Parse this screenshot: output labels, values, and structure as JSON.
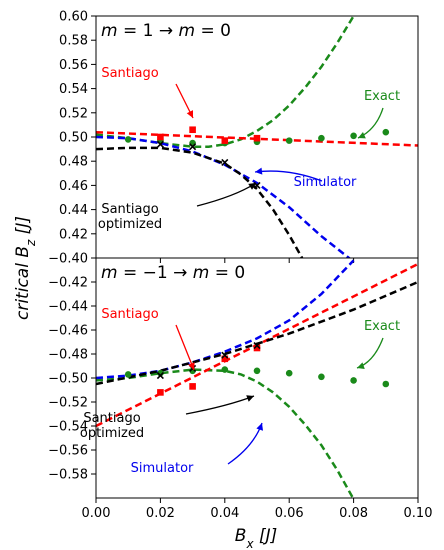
{
  "ylabel": "critical B_z [J]",
  "xlabel": "B_x [J]",
  "colors": {
    "santiago": "#ff0000",
    "exact": "#1a8a1a",
    "simulator": "#0000ee",
    "optimized": "#000000"
  },
  "chart_data": [
    {
      "type": "line",
      "title": "m = 1 → m = 0",
      "xlim": [
        0.0,
        0.1
      ],
      "ylim": [
        0.4,
        0.6
      ],
      "yticks": [
        "0.42",
        "0.44",
        "0.46",
        "0.48",
        "0.50",
        "0.52",
        "0.54",
        "0.56",
        "0.58",
        "0.60"
      ],
      "annotations": [
        "Santiago",
        "Exact",
        "Simulator",
        "Santiago\noptimized"
      ],
      "series": [
        {
          "name": "Exact (markers)",
          "style": "circle",
          "color": "#1a8a1a",
          "x": [
            0.01,
            0.02,
            0.03,
            0.04,
            0.05,
            0.06,
            0.07,
            0.08,
            0.09
          ],
          "y": [
            0.498,
            0.497,
            0.495,
            0.495,
            0.496,
            0.497,
            0.499,
            0.501,
            0.504
          ]
        },
        {
          "name": "Santiago (markers)",
          "style": "square",
          "color": "#ff0000",
          "x": [
            0.02,
            0.03,
            0.04,
            0.05
          ],
          "y": [
            0.5,
            0.506,
            0.497,
            0.499
          ]
        },
        {
          "name": "Santiago optimized (markers)",
          "style": "x",
          "color": "#000000",
          "x": [
            0.02,
            0.03,
            0.04,
            0.05
          ],
          "y": [
            0.494,
            0.492,
            0.479,
            0.46
          ]
        },
        {
          "name": "Exact (dashed)",
          "style": "dashed",
          "color": "#1a8a1a",
          "x": [
            0.0,
            0.01,
            0.02,
            0.03,
            0.035,
            0.04,
            0.045,
            0.05,
            0.055,
            0.06,
            0.065,
            0.07,
            0.075,
            0.08,
            0.083
          ],
          "y": [
            0.502,
            0.499,
            0.495,
            0.492,
            0.492,
            0.494,
            0.498,
            0.505,
            0.514,
            0.526,
            0.541,
            0.558,
            0.578,
            0.6,
            0.611
          ]
        },
        {
          "name": "Santiago (dashed)",
          "style": "dashed",
          "color": "#ff0000",
          "x": [
            0.0,
            0.1
          ],
          "y": [
            0.504,
            0.493
          ]
        },
        {
          "name": "Simulator (dashed)",
          "style": "dashed",
          "color": "#0000ee",
          "x": [
            0.0,
            0.01,
            0.02,
            0.03,
            0.04,
            0.05,
            0.06,
            0.07,
            0.08
          ],
          "y": [
            0.5,
            0.499,
            0.495,
            0.488,
            0.477,
            0.462,
            0.442,
            0.418,
            0.397
          ]
        },
        {
          "name": "Santiago optimized (dashed)",
          "style": "dashed",
          "color": "#000000",
          "x": [
            0.0,
            0.01,
            0.02,
            0.03,
            0.04,
            0.045,
            0.05,
            0.055,
            0.06,
            0.064
          ],
          "y": [
            0.49,
            0.491,
            0.491,
            0.487,
            0.478,
            0.469,
            0.457,
            0.44,
            0.419,
            0.4
          ]
        }
      ]
    },
    {
      "type": "line",
      "title": "m = −1 → m = 0",
      "xlim": [
        0.0,
        0.1
      ],
      "ylim": [
        -0.6,
        -0.4
      ],
      "yticks": [
        "−0.40",
        "−0.42",
        "−0.44",
        "−0.46",
        "−0.48",
        "−0.50",
        "−0.52",
        "−0.54",
        "−0.56",
        "−0.58"
      ],
      "xticks": [
        "0.00",
        "0.02",
        "0.04",
        "0.06",
        "0.08",
        "0.10"
      ],
      "annotations": [
        "Santiago",
        "Exact",
        "Santiago\noptimized",
        "Simulator"
      ],
      "series": [
        {
          "name": "Exact (markers)",
          "style": "circle",
          "color": "#1a8a1a",
          "x": [
            0.01,
            0.02,
            0.03,
            0.04,
            0.05,
            0.06,
            0.07,
            0.08,
            0.09
          ],
          "y": [
            -0.497,
            -0.496,
            -0.494,
            -0.493,
            -0.494,
            -0.496,
            -0.499,
            -0.502,
            -0.505
          ]
        },
        {
          "name": "Santiago (markers)",
          "style": "square",
          "color": "#ff0000",
          "x": [
            0.02,
            0.03,
            0.04,
            0.05
          ],
          "y": [
            -0.512,
            -0.507,
            -0.484,
            -0.475
          ]
        },
        {
          "name": "Santiago optimized (markers)",
          "style": "x",
          "color": "#000000",
          "x": [
            0.02,
            0.03,
            0.04,
            0.05
          ],
          "y": [
            -0.498,
            -0.492,
            -0.481,
            -0.473
          ]
        },
        {
          "name": "Exact (dashed)",
          "style": "dashed",
          "color": "#1a8a1a",
          "x": [
            0.0,
            0.01,
            0.02,
            0.03,
            0.04,
            0.045,
            0.05,
            0.055,
            0.06,
            0.065,
            0.07,
            0.075,
            0.08,
            0.082
          ],
          "y": [
            -0.502,
            -0.5,
            -0.496,
            -0.493,
            -0.494,
            -0.497,
            -0.503,
            -0.512,
            -0.524,
            -0.539,
            -0.556,
            -0.577,
            -0.601,
            -0.611
          ]
        },
        {
          "name": "Santiago (dashed)",
          "style": "dashed",
          "color": "#ff0000",
          "x": [
            0.0,
            0.1
          ],
          "y": [
            -0.54,
            -0.405
          ]
        },
        {
          "name": "Simulator (dashed)",
          "style": "dashed",
          "color": "#0000ee",
          "x": [
            0.0,
            0.01,
            0.02,
            0.03,
            0.04,
            0.05,
            0.06,
            0.07,
            0.08
          ],
          "y": [
            -0.5,
            -0.498,
            -0.494,
            -0.487,
            -0.478,
            -0.467,
            -0.452,
            -0.43,
            -0.402
          ]
        },
        {
          "name": "Santiago optimized (dashed)",
          "style": "dashed",
          "color": "#000000",
          "x": [
            0.0,
            0.02,
            0.04,
            0.06,
            0.08,
            0.1
          ],
          "y": [
            -0.505,
            -0.494,
            -0.48,
            -0.463,
            -0.443,
            -0.42
          ]
        }
      ]
    }
  ]
}
